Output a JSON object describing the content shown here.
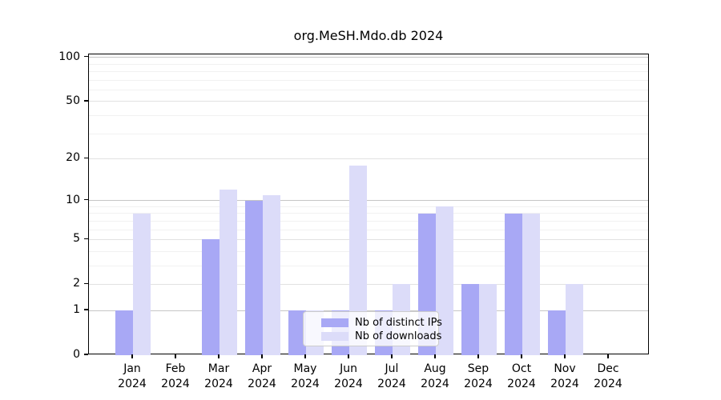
{
  "title": "org.MeSH.Mdo.db 2024",
  "legend": {
    "items": [
      {
        "label": "Nb of distinct IPs"
      },
      {
        "label": "Nb of downloads"
      }
    ]
  },
  "chart_data": {
    "type": "bar",
    "title": "org.MeSH.Mdo.db 2024",
    "categories": [
      "Jan 2024",
      "Feb 2024",
      "Mar 2024",
      "Apr 2024",
      "May 2024",
      "Jun 2024",
      "Jul 2024",
      "Aug 2024",
      "Sep 2024",
      "Oct 2024",
      "Nov 2024",
      "Dec 2024"
    ],
    "month_labels": [
      "Jan",
      "Feb",
      "Mar",
      "Apr",
      "May",
      "Jun",
      "Jul",
      "Aug",
      "Sep",
      "Oct",
      "Nov",
      "Dec"
    ],
    "year_label": "2024",
    "series": [
      {
        "name": "Nb of distinct IPs",
        "color": "#a8a8f5",
        "values": [
          1,
          0,
          5,
          10,
          1,
          1,
          1,
          8,
          2,
          8,
          1,
          0
        ]
      },
      {
        "name": "Nb of downloads",
        "color": "#dcdcf9",
        "values": [
          8,
          0,
          12,
          11,
          1,
          18,
          2,
          9,
          2,
          8,
          2,
          0
        ]
      }
    ],
    "xlabel": "",
    "ylabel": "",
    "y_scale": "log10(1+x)",
    "ylim": [
      0,
      100
    ],
    "y_ticks": [
      0,
      1,
      2,
      5,
      10,
      20,
      50,
      100
    ],
    "grid": {
      "on": true,
      "major_values": [
        1,
        10,
        100
      ],
      "mid_values": [
        2,
        5,
        20,
        50
      ],
      "minor_values": [
        3,
        4,
        6,
        7,
        8,
        9,
        30,
        40,
        60,
        70,
        80,
        90
      ]
    },
    "legend_position": "lower center"
  },
  "colors": {
    "bar_distinct_ips": "#a8a8f5",
    "bar_downloads": "#dcdcf9",
    "grid_major": "#c6c6c6",
    "grid_mid": "#e2e2e2",
    "grid_minor": "#f1f1f1",
    "spine": "#000000",
    "text": "#000000"
  }
}
